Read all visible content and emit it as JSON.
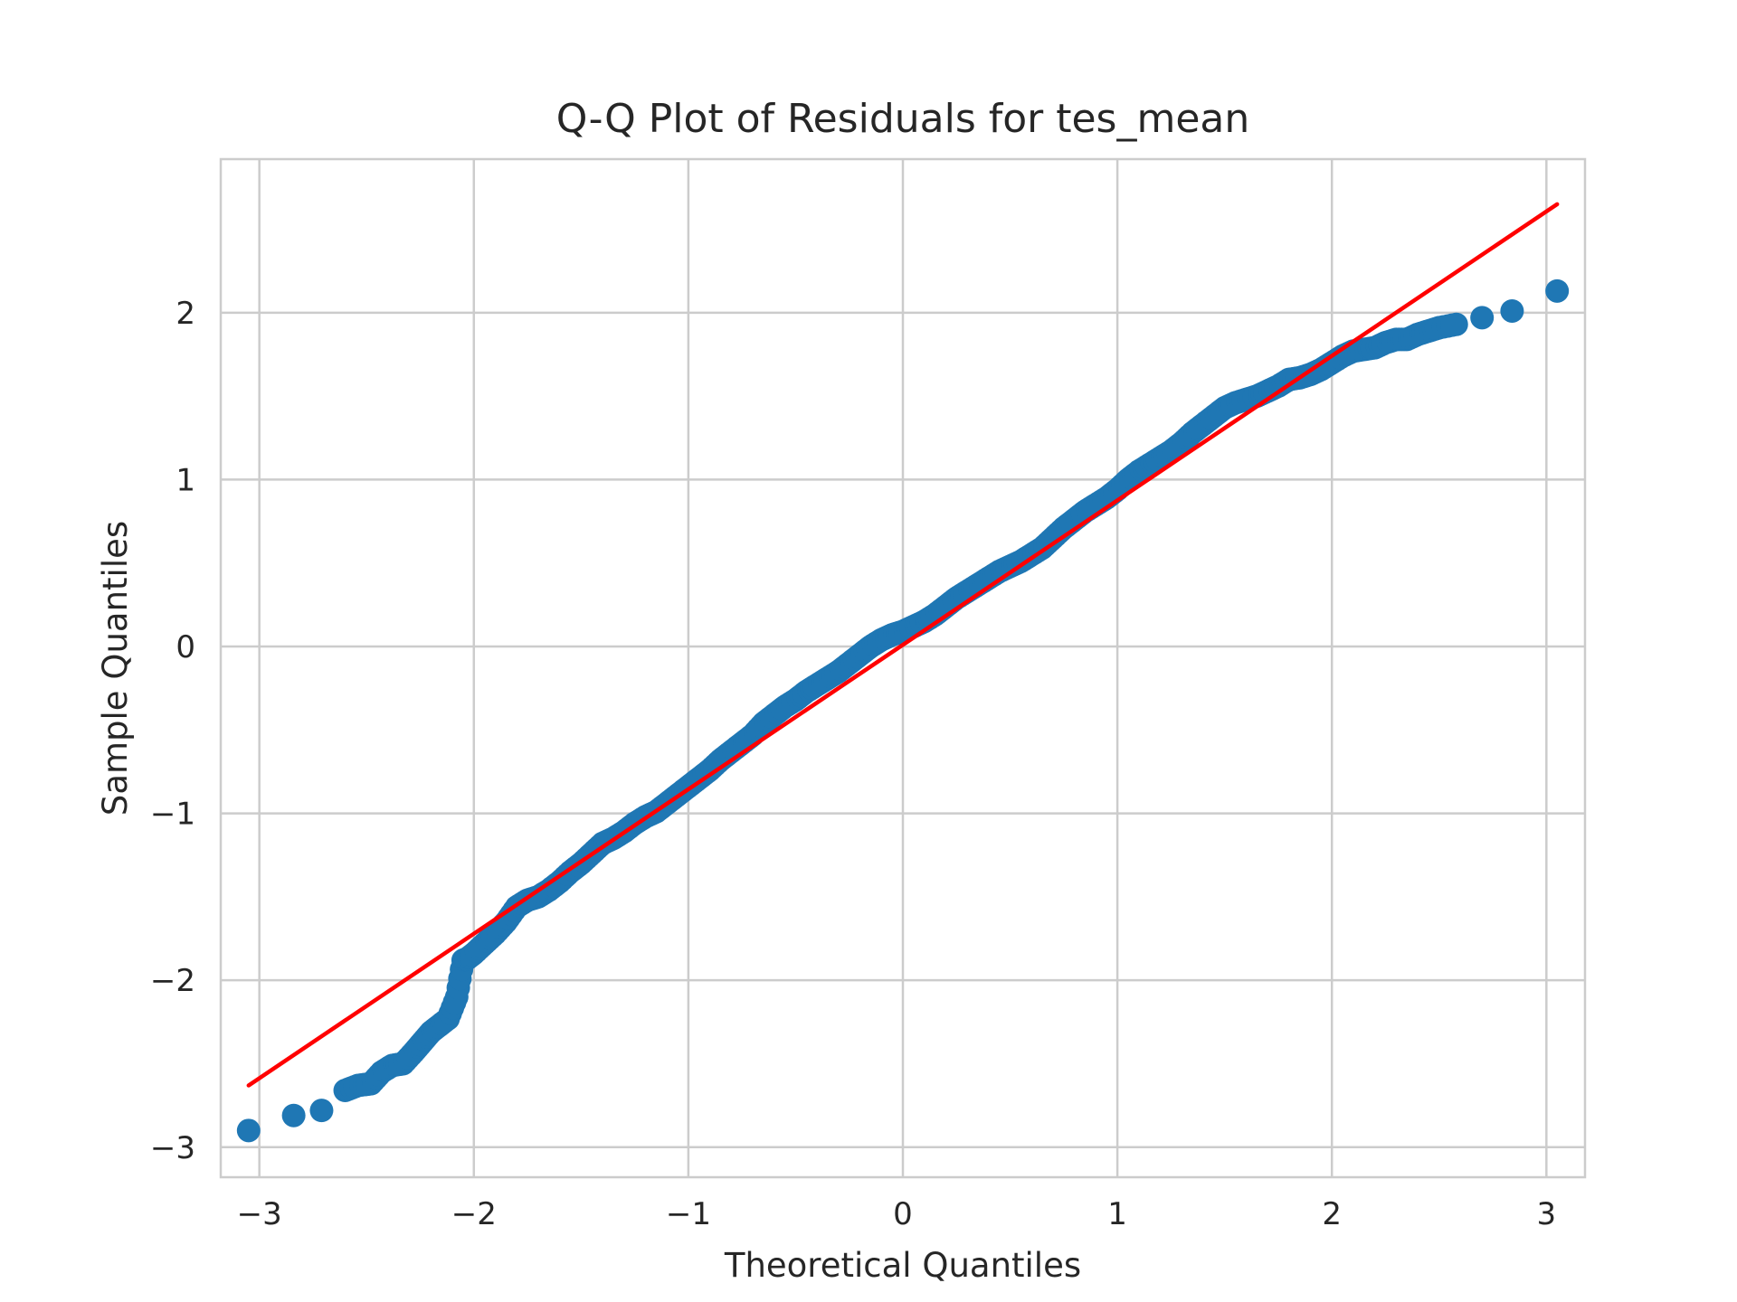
{
  "chart_data": {
    "type": "scatter",
    "title": "Q-Q Plot of Residuals for tes_mean",
    "xlabel": "Theoretical Quantiles",
    "ylabel": "Sample Quantiles",
    "xlim": [
      -3.18,
      3.18
    ],
    "ylim": [
      -3.18,
      2.92
    ],
    "xticks": [
      -3,
      -2,
      -1,
      0,
      1,
      2,
      3
    ],
    "yticks": [
      -3,
      -2,
      -1,
      0,
      1,
      2
    ],
    "xtick_labels": [
      "−3",
      "−2",
      "−1",
      "0",
      "1",
      "2",
      "3"
    ],
    "ytick_labels": [
      "−3",
      "−2",
      "−1",
      "0",
      "1",
      "2"
    ],
    "grid": true,
    "marker_color": "#1f77b4",
    "line_color": "#ff0000",
    "reference_line": {
      "x": [
        -3.05,
        3.05
      ],
      "y": [
        -2.63,
        2.65
      ]
    },
    "points": {
      "x": [
        -3.05,
        -2.84,
        -2.71,
        -2.6,
        -2.54,
        -2.48,
        -2.43,
        -2.38,
        -2.33,
        -2.28,
        -2.24,
        -2.2,
        -2.16,
        -2.12,
        -2.08,
        -2.05,
        -2.03,
        -2.0,
        -1.95,
        -1.9,
        -1.85,
        -1.8,
        -1.75,
        -1.7,
        -1.65,
        -1.6,
        -1.55,
        -1.5,
        -1.45,
        -1.4,
        -1.35,
        -1.3,
        -1.25,
        -1.2,
        -1.15,
        -1.1,
        -1.05,
        -1.0,
        -0.95,
        -0.9,
        -0.85,
        -0.8,
        -0.75,
        -0.7,
        -0.65,
        -0.6,
        -0.55,
        -0.5,
        -0.45,
        -0.4,
        -0.35,
        -0.3,
        -0.25,
        -0.2,
        -0.15,
        -0.1,
        -0.05,
        0.0,
        0.05,
        0.1,
        0.15,
        0.2,
        0.25,
        0.3,
        0.35,
        0.4,
        0.45,
        0.5,
        0.55,
        0.6,
        0.65,
        0.7,
        0.75,
        0.8,
        0.85,
        0.9,
        0.95,
        1.0,
        1.05,
        1.1,
        1.15,
        1.2,
        1.25,
        1.3,
        1.35,
        1.4,
        1.45,
        1.5,
        1.55,
        1.6,
        1.65,
        1.7,
        1.75,
        1.8,
        1.85,
        1.9,
        1.95,
        2.0,
        2.05,
        2.1,
        2.15,
        2.2,
        2.25,
        2.3,
        2.35,
        2.4,
        2.45,
        2.5,
        2.58,
        2.7,
        2.84,
        3.05
      ],
      "y": [
        -2.9,
        -2.81,
        -2.78,
        -2.66,
        -2.63,
        -2.62,
        -2.55,
        -2.51,
        -2.5,
        -2.43,
        -2.37,
        -2.31,
        -2.27,
        -2.23,
        -2.1,
        -1.88,
        -1.87,
        -1.84,
        -1.78,
        -1.72,
        -1.65,
        -1.56,
        -1.52,
        -1.5,
        -1.46,
        -1.41,
        -1.35,
        -1.3,
        -1.24,
        -1.18,
        -1.15,
        -1.11,
        -1.06,
        -1.02,
        -0.99,
        -0.94,
        -0.89,
        -0.84,
        -0.79,
        -0.74,
        -0.68,
        -0.63,
        -0.58,
        -0.53,
        -0.46,
        -0.41,
        -0.36,
        -0.32,
        -0.27,
        -0.23,
        -0.19,
        -0.15,
        -0.1,
        -0.05,
        0.0,
        0.04,
        0.07,
        0.09,
        0.12,
        0.15,
        0.19,
        0.24,
        0.29,
        0.33,
        0.37,
        0.41,
        0.45,
        0.48,
        0.51,
        0.55,
        0.59,
        0.65,
        0.71,
        0.76,
        0.81,
        0.85,
        0.89,
        0.94,
        1.0,
        1.05,
        1.09,
        1.13,
        1.17,
        1.22,
        1.28,
        1.33,
        1.38,
        1.43,
        1.46,
        1.48,
        1.5,
        1.53,
        1.56,
        1.6,
        1.61,
        1.63,
        1.66,
        1.7,
        1.74,
        1.77,
        1.78,
        1.79,
        1.82,
        1.84,
        1.84,
        1.87,
        1.89,
        1.91,
        1.93,
        1.97,
        2.01,
        2.13
      ]
    }
  }
}
